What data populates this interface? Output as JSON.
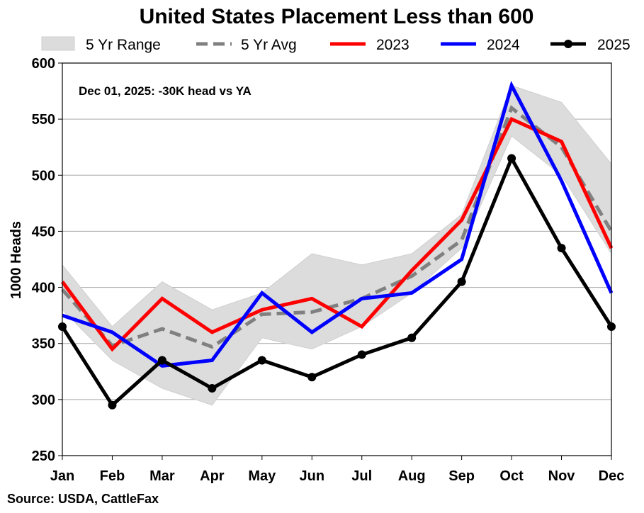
{
  "chart_data": {
    "type": "line",
    "title": "United States Placement Less than 600",
    "ylabel": "1000 Heads",
    "xlabel": "",
    "categories": [
      "Jan",
      "Feb",
      "Mar",
      "Apr",
      "May",
      "Jun",
      "Jul",
      "Aug",
      "Sep",
      "Oct",
      "Nov",
      "Dec"
    ],
    "ylim": [
      250,
      600
    ],
    "yticks": [
      250,
      300,
      350,
      400,
      450,
      500,
      550,
      600
    ],
    "grid": true,
    "range": {
      "name": "5 Yr Range",
      "color": "#dcdcdc",
      "low": [
        380,
        335,
        310,
        295,
        355,
        345,
        365,
        395,
        435,
        535,
        500,
        430
      ],
      "high": [
        420,
        365,
        405,
        380,
        395,
        430,
        420,
        430,
        465,
        580,
        565,
        510
      ]
    },
    "series": [
      {
        "name": "5 Yr Avg",
        "color": "#808080",
        "style": "dashed",
        "marker": false,
        "values": [
          398,
          348,
          363,
          347,
          376,
          378,
          390,
          410,
          442,
          560,
          525,
          450
        ]
      },
      {
        "name": "2023",
        "color": "#ff0000",
        "style": "solid",
        "marker": false,
        "values": [
          405,
          345,
          390,
          360,
          380,
          390,
          365,
          415,
          460,
          550,
          530,
          435
        ]
      },
      {
        "name": "2024",
        "color": "#0000ff",
        "style": "solid",
        "marker": false,
        "values": [
          375,
          360,
          330,
          335,
          395,
          360,
          390,
          395,
          425,
          580,
          495,
          395
        ]
      },
      {
        "name": "2025",
        "color": "#000000",
        "style": "solid",
        "marker": true,
        "values": [
          365,
          295,
          335,
          310,
          335,
          320,
          340,
          355,
          405,
          515,
          435,
          365
        ]
      }
    ],
    "legend_placement": "top",
    "annotation": "Dec 01, 2025: -30K head vs YA",
    "source": "Source: USDA, CattleFax"
  }
}
